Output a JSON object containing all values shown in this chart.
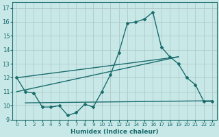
{
  "background_color": "#c8e8e8",
  "grid_color": "#b0c8c8",
  "line_color": "#1a6b6b",
  "xlabel": "Humidex (Indice chaleur)",
  "xlim": [
    -0.5,
    23.5
  ],
  "ylim": [
    9,
    17.4
  ],
  "yticks": [
    9,
    10,
    11,
    12,
    13,
    14,
    15,
    16,
    17
  ],
  "xticks": [
    0,
    1,
    2,
    3,
    4,
    5,
    6,
    7,
    8,
    9,
    10,
    11,
    12,
    13,
    14,
    15,
    16,
    17,
    18,
    19,
    20,
    21,
    22,
    23
  ],
  "line1_x": [
    0,
    1,
    2,
    3,
    4,
    5,
    6,
    7,
    8,
    9,
    10,
    11,
    12,
    13,
    14,
    15,
    16,
    17,
    18,
    19,
    20,
    21,
    22,
    23
  ],
  "line1_y": [
    12.0,
    11.0,
    10.9,
    9.9,
    9.9,
    10.0,
    9.3,
    9.5,
    10.1,
    9.9,
    11.0,
    12.2,
    13.8,
    15.9,
    16.0,
    16.2,
    16.7,
    14.2,
    13.5,
    13.0,
    12.0,
    11.5,
    10.3,
    10.3
  ],
  "line2_x": [
    0,
    19
  ],
  "line2_y": [
    12.0,
    13.5
  ],
  "line3_x": [
    0,
    19
  ],
  "line3_y": [
    11.0,
    13.5
  ],
  "line4_x": [
    1,
    23
  ],
  "line4_y": [
    10.2,
    10.35
  ],
  "marker_style": "D",
  "marker_size": 2.0,
  "line_width": 1.0
}
